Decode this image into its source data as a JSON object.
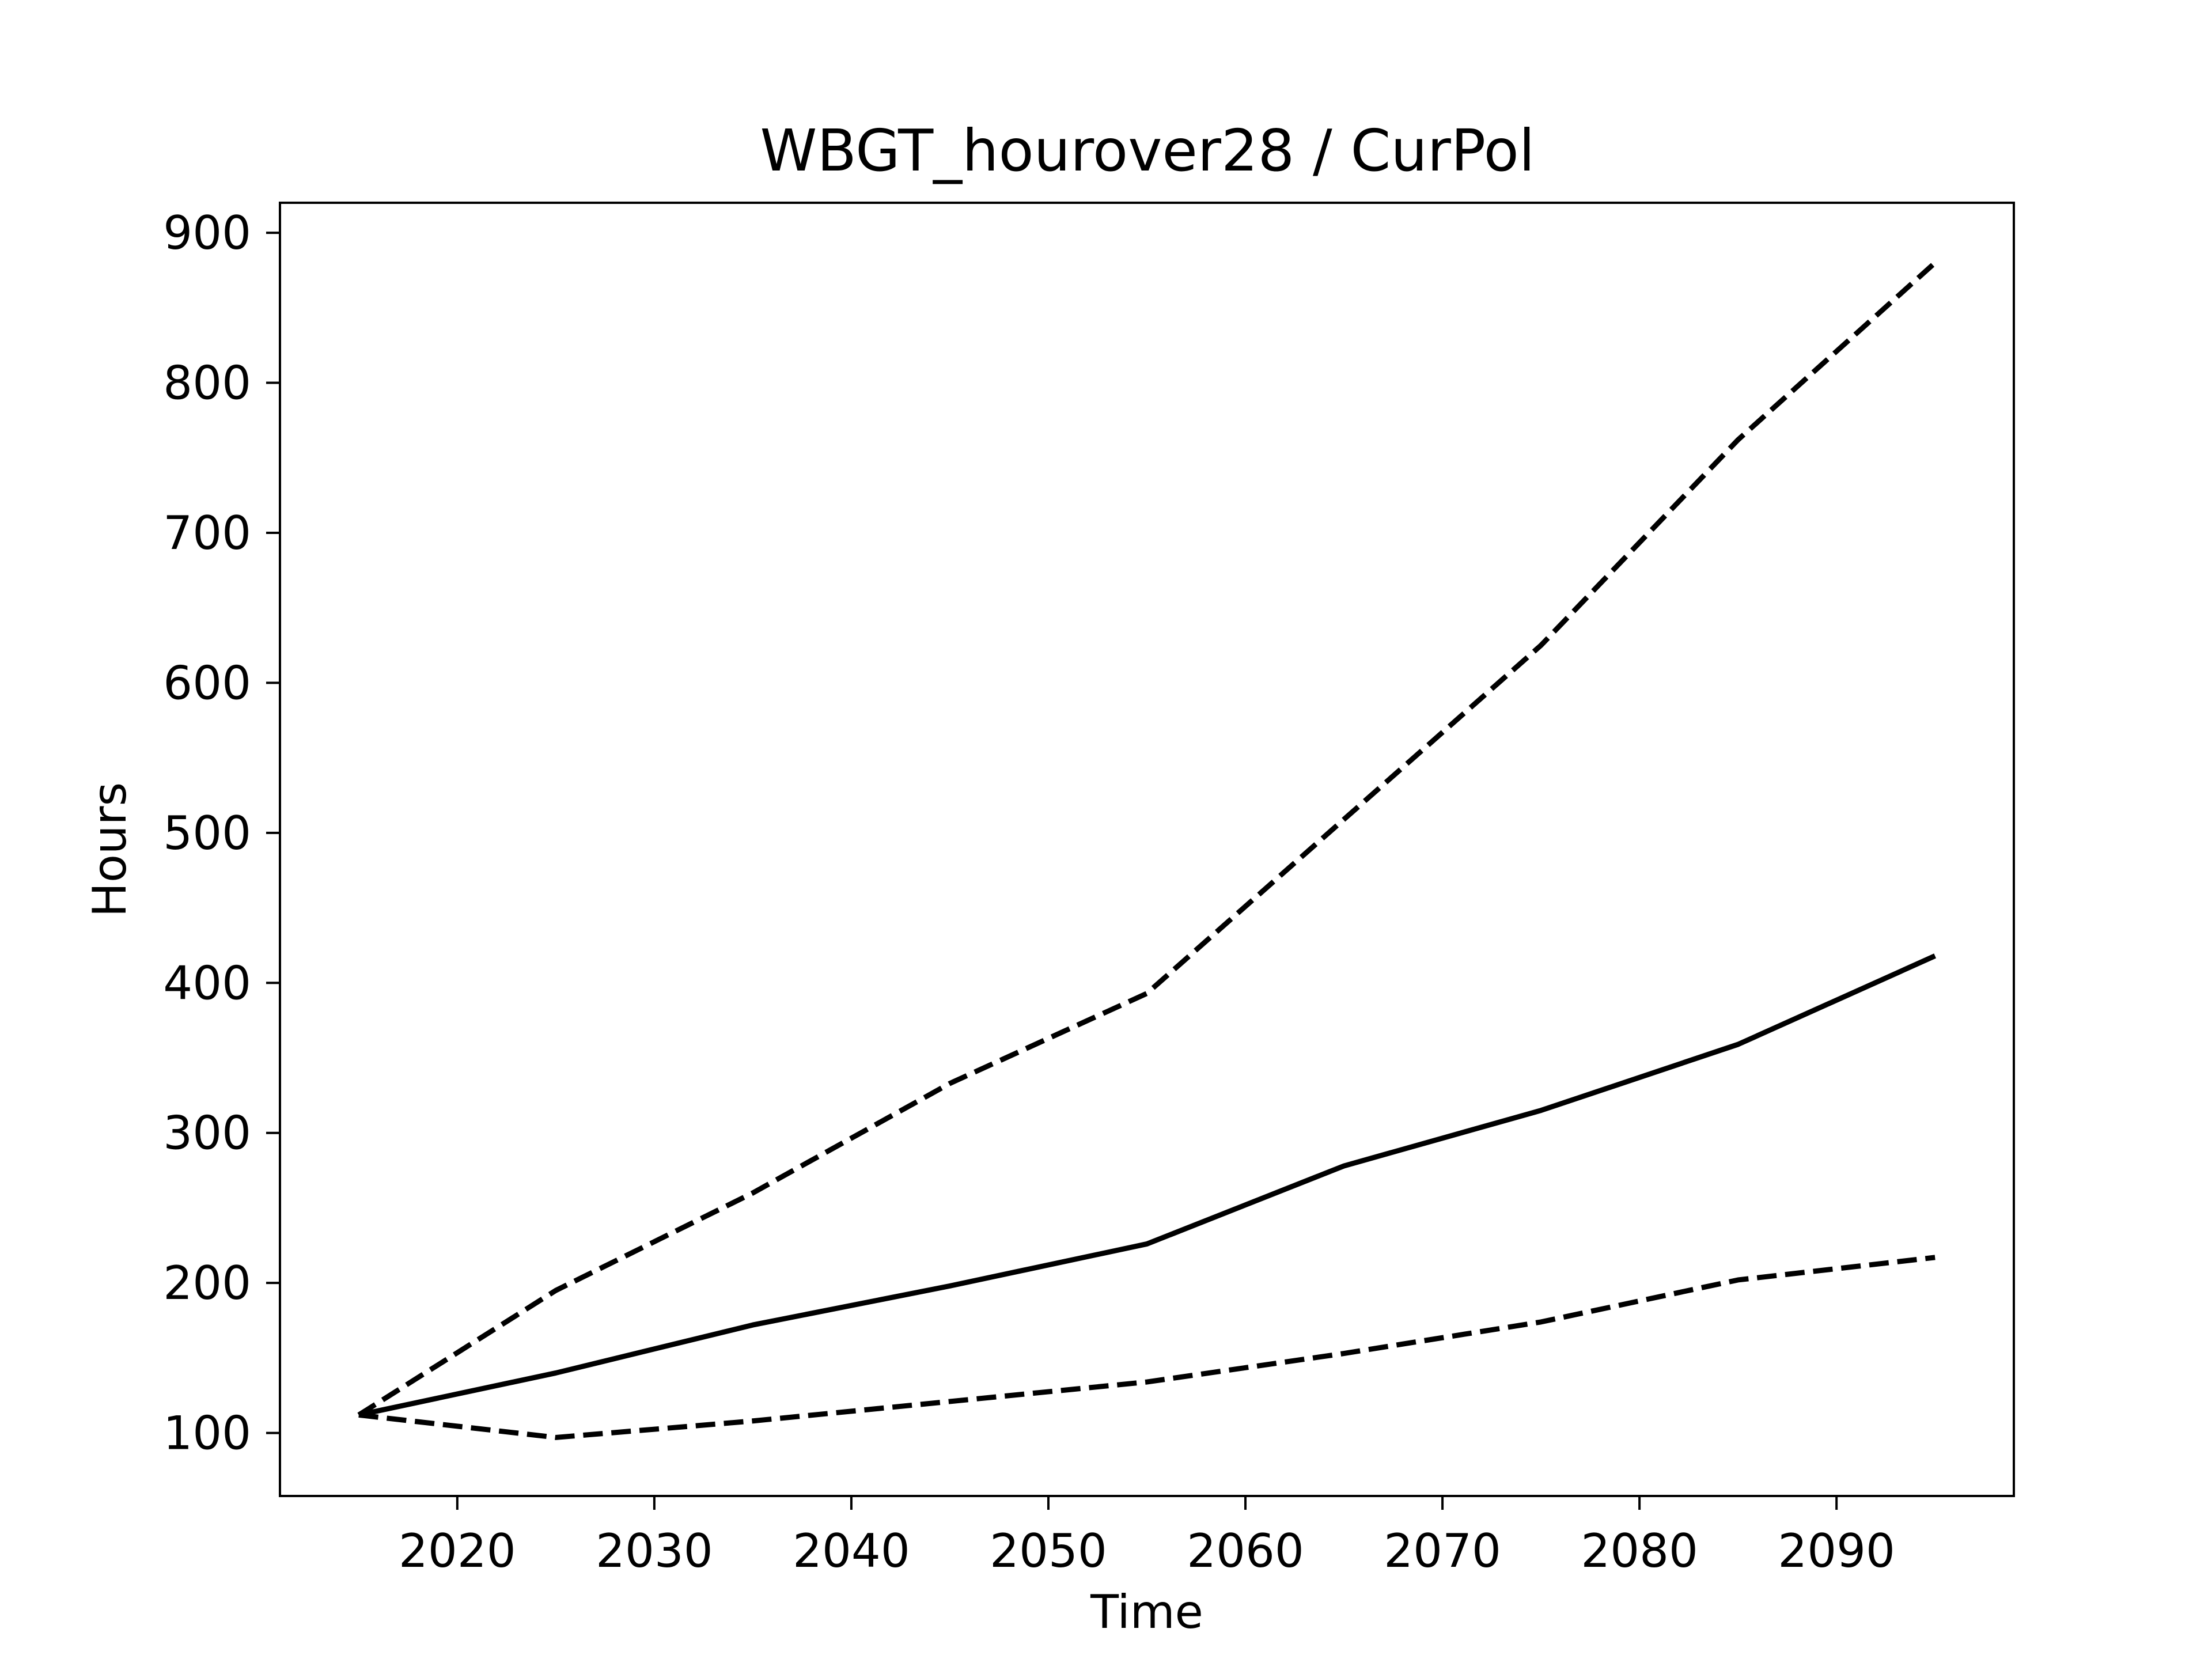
{
  "chart_data": {
    "type": "line",
    "title": "WBGT_hourover28 / CurPol",
    "xlabel": "Time",
    "ylabel": "Hours",
    "xlim": [
      2011,
      2099
    ],
    "ylim": [
      58,
      920
    ],
    "xticks": [
      2020,
      2030,
      2040,
      2050,
      2060,
      2070,
      2080,
      2090
    ],
    "yticks": [
      100,
      200,
      300,
      400,
      500,
      600,
      700,
      800,
      900
    ],
    "grid": false,
    "legend": "none",
    "x": [
      2015,
      2025,
      2035,
      2045,
      2055,
      2065,
      2075,
      2085,
      2095
    ],
    "series": [
      {
        "style": "solid",
        "values": [
          112,
          140,
          172,
          198,
          226,
          278,
          315,
          359,
          418
        ]
      },
      {
        "style": "dashed",
        "values": [
          112,
          195,
          260,
          333,
          393,
          509,
          625,
          762,
          880
        ]
      },
      {
        "style": "dashed",
        "values": [
          112,
          97,
          108,
          121,
          134,
          153,
          174,
          202,
          217
        ]
      }
    ],
    "colors": {
      "line": "#000000",
      "axes": "#000000",
      "background": "#ffffff"
    }
  }
}
